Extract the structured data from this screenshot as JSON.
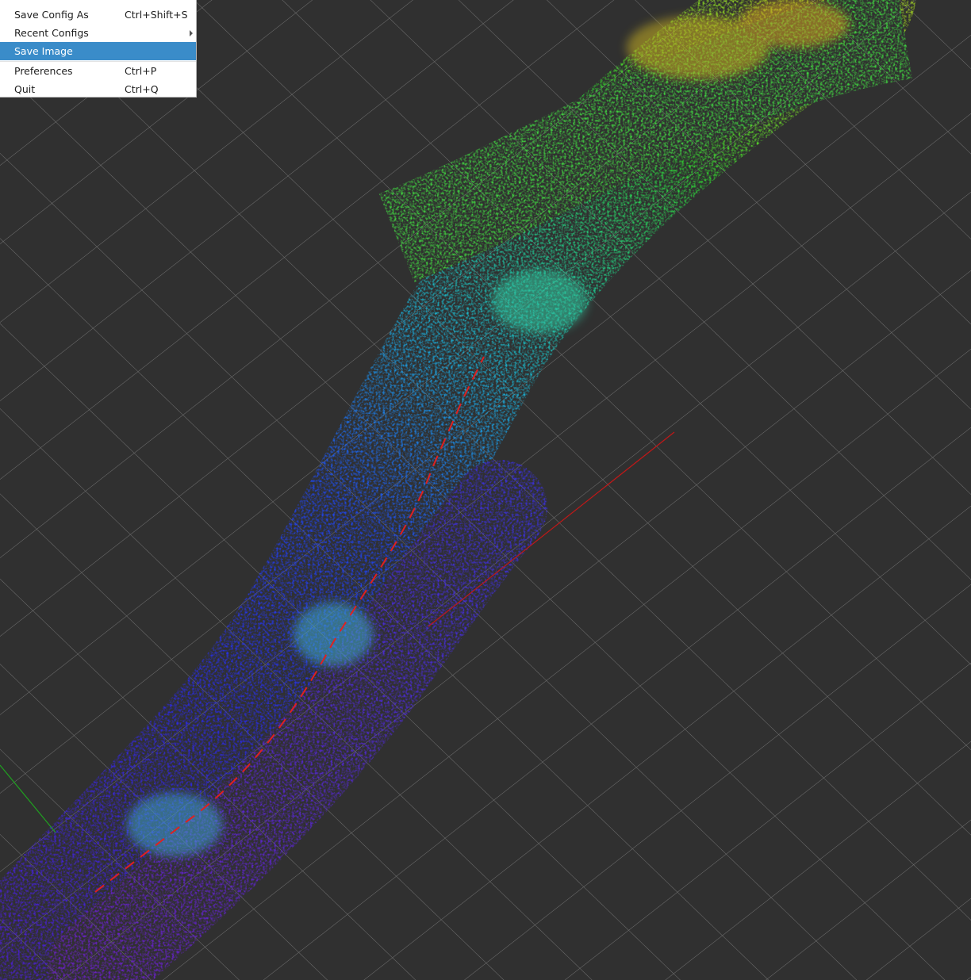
{
  "menu": {
    "items": [
      {
        "label": "Save Config As",
        "shortcut": "Ctrl+Shift+S"
      },
      {
        "label": "Recent Configs"
      },
      {
        "label": "Save Image"
      },
      {
        "label": "Preferences",
        "shortcut": "Ctrl+P"
      },
      {
        "label": "Quit",
        "shortcut": "Ctrl+Q"
      }
    ]
  }
}
